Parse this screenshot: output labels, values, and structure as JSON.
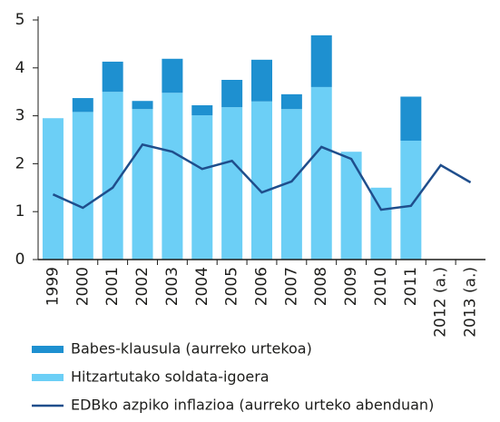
{
  "chart_data": {
    "type": "bar",
    "stacked": true,
    "categories": [
      "1999",
      "2000",
      "2001",
      "2002",
      "2003",
      "2004",
      "2005",
      "2006",
      "2007",
      "2008",
      "2009",
      "2010",
      "2011",
      "2012 (a.)",
      "2013 (a.)"
    ],
    "series": [
      {
        "name": "Hitzartutako soldata-igoera",
        "color": "#6ccff6",
        "type": "bar",
        "values": [
          2.95,
          3.08,
          3.5,
          3.14,
          3.48,
          3.01,
          3.18,
          3.3,
          3.14,
          3.6,
          2.25,
          1.5,
          2.48,
          null,
          null
        ]
      },
      {
        "name": "Babes-klausula (aurreko urtekoa)",
        "color": "#1e90d0",
        "type": "bar",
        "values": [
          null,
          0.29,
          0.63,
          0.17,
          0.71,
          0.21,
          0.57,
          0.87,
          0.31,
          1.08,
          null,
          null,
          0.92,
          null,
          null
        ]
      },
      {
        "name": "EDBko azpiko inflazioa (aurreko urteko abenduan)",
        "color": "#1f4e8c",
        "type": "line",
        "values": [
          1.36,
          1.08,
          1.5,
          2.4,
          2.25,
          1.89,
          2.06,
          1.4,
          1.63,
          2.35,
          2.1,
          1.04,
          1.12,
          1.97,
          1.61
        ]
      }
    ],
    "legend_order": [
      1,
      0,
      2
    ],
    "ylim": [
      0,
      5
    ],
    "yticks": [
      0,
      1,
      2,
      3,
      4,
      5
    ],
    "grid": false
  }
}
